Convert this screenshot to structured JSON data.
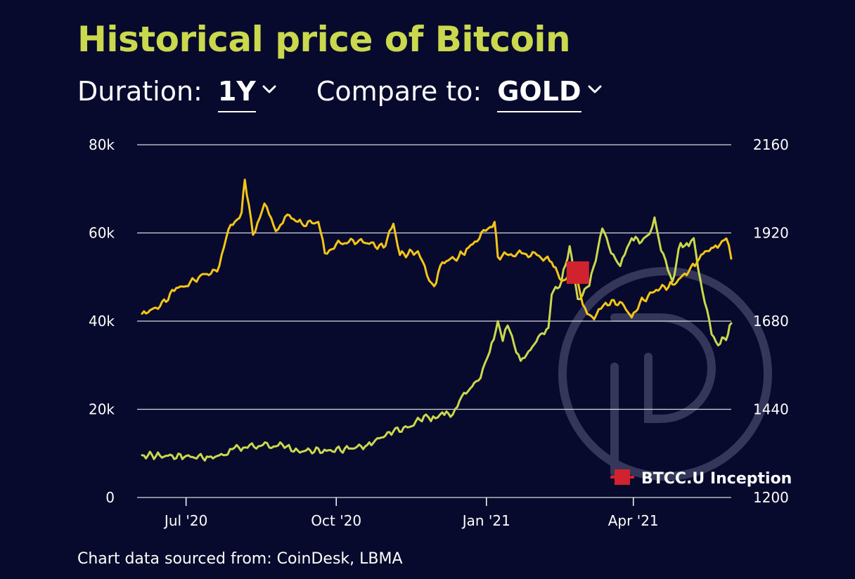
{
  "header": {
    "title": "Historical price of Bitcoin"
  },
  "controls": {
    "duration_label": "Duration:",
    "duration_value": "1Y",
    "compare_label": "Compare to:",
    "compare_value": "GOLD"
  },
  "footer": {
    "source": "Chart data sourced from: CoinDesk, LBMA"
  },
  "colors": {
    "background": "#070a2c",
    "title": "#c9d84c",
    "bitcoin": "#c9d84c",
    "gold": "#f5c518",
    "marker": "#d0232e",
    "gridline": "#d7d7e0",
    "watermark": "#5a5d80"
  },
  "chart_data": {
    "type": "line",
    "x_axis": {
      "type": "date",
      "range": [
        "2020-06-01",
        "2021-05-31"
      ],
      "ticks": [
        {
          "date": "2020-07-01",
          "label": "Jul '20"
        },
        {
          "date": "2020-10-01",
          "label": "Oct '20"
        },
        {
          "date": "2021-01-01",
          "label": "Jan '21"
        },
        {
          "date": "2021-04-01",
          "label": "Apr '21"
        }
      ]
    },
    "y_left": {
      "range": [
        0,
        80000
      ],
      "ticks": [
        {
          "value": 0,
          "label": "0"
        },
        {
          "value": 20000,
          "label": "20k"
        },
        {
          "value": 40000,
          "label": "40k"
        },
        {
          "value": 60000,
          "label": "60k"
        },
        {
          "value": 80000,
          "label": "80k"
        }
      ]
    },
    "y_right": {
      "range": [
        1200,
        2160
      ],
      "ticks": [
        {
          "value": 1200,
          "label": "1200"
        },
        {
          "value": 1440,
          "label": "1440"
        },
        {
          "value": 1680,
          "label": "1680"
        },
        {
          "value": 1920,
          "label": "1920"
        },
        {
          "value": 2160,
          "label": "2160"
        }
      ]
    },
    "grid": "horizontal",
    "series": [
      {
        "axis": "left",
        "color": "#c9d84c",
        "points": [
          [
            "2020-06-04",
            9600
          ],
          [
            "2020-06-15",
            9500
          ],
          [
            "2020-06-30",
            9200
          ],
          [
            "2020-07-15",
            9200
          ],
          [
            "2020-07-25",
            9600
          ],
          [
            "2020-07-28",
            11000
          ],
          [
            "2020-08-05",
            11300
          ],
          [
            "2020-08-17",
            11900
          ],
          [
            "2020-08-25",
            11600
          ],
          [
            "2020-09-02",
            11900
          ],
          [
            "2020-09-05",
            10400
          ],
          [
            "2020-09-15",
            10700
          ],
          [
            "2020-09-25",
            10600
          ],
          [
            "2020-10-10",
            11100
          ],
          [
            "2020-10-20",
            11900
          ],
          [
            "2020-10-25",
            13000
          ],
          [
            "2020-11-05",
            15000
          ],
          [
            "2020-11-15",
            16000
          ],
          [
            "2020-11-25",
            18800
          ],
          [
            "2020-11-28",
            17300
          ],
          [
            "2020-12-05",
            19300
          ],
          [
            "2020-12-10",
            18300
          ],
          [
            "2020-12-17",
            23000
          ],
          [
            "2020-12-27",
            26500
          ],
          [
            "2021-01-03",
            33000
          ],
          [
            "2021-01-08",
            40000
          ],
          [
            "2021-01-11",
            35500
          ],
          [
            "2021-01-14",
            39000
          ],
          [
            "2021-01-22",
            31000
          ],
          [
            "2021-01-28",
            33500
          ],
          [
            "2021-02-03",
            37000
          ],
          [
            "2021-02-08",
            38500
          ],
          [
            "2021-02-10",
            46000
          ],
          [
            "2021-02-16",
            49000
          ],
          [
            "2021-02-21",
            57000
          ],
          [
            "2021-02-26",
            45000
          ],
          [
            "2021-03-05",
            48000
          ],
          [
            "2021-03-13",
            61000
          ],
          [
            "2021-03-17",
            57000
          ],
          [
            "2021-03-24",
            52500
          ],
          [
            "2021-03-31",
            58800
          ],
          [
            "2021-04-06",
            58000
          ],
          [
            "2021-04-11",
            59800
          ],
          [
            "2021-04-14",
            63500
          ],
          [
            "2021-04-18",
            56000
          ],
          [
            "2021-04-25",
            49000
          ],
          [
            "2021-04-30",
            57700
          ],
          [
            "2021-05-05",
            57000
          ],
          [
            "2021-05-08",
            58800
          ],
          [
            "2021-05-12",
            49500
          ],
          [
            "2021-05-19",
            37000
          ],
          [
            "2021-05-23",
            34500
          ],
          [
            "2021-05-29",
            37000
          ],
          [
            "2021-05-31",
            39500
          ]
        ]
      },
      {
        "axis": "right",
        "color": "#f5c518",
        "points": [
          [
            "2020-06-04",
            1700
          ],
          [
            "2020-06-15",
            1720
          ],
          [
            "2020-06-25",
            1770
          ],
          [
            "2020-07-01",
            1775
          ],
          [
            "2020-07-10",
            1805
          ],
          [
            "2020-07-20",
            1815
          ],
          [
            "2020-07-27",
            1930
          ],
          [
            "2020-08-04",
            1975
          ],
          [
            "2020-08-06",
            2065
          ],
          [
            "2020-08-11",
            1915
          ],
          [
            "2020-08-18",
            2000
          ],
          [
            "2020-08-25",
            1925
          ],
          [
            "2020-09-01",
            1970
          ],
          [
            "2020-09-10",
            1945
          ],
          [
            "2020-09-20",
            1950
          ],
          [
            "2020-09-24",
            1865
          ],
          [
            "2020-10-01",
            1890
          ],
          [
            "2020-10-15",
            1900
          ],
          [
            "2020-10-30",
            1880
          ],
          [
            "2020-11-05",
            1945
          ],
          [
            "2020-11-09",
            1860
          ],
          [
            "2020-11-20",
            1870
          ],
          [
            "2020-11-27",
            1790
          ],
          [
            "2020-11-30",
            1775
          ],
          [
            "2020-12-05",
            1840
          ],
          [
            "2020-12-15",
            1855
          ],
          [
            "2020-12-21",
            1880
          ],
          [
            "2021-01-06",
            1950
          ],
          [
            "2021-01-08",
            1855
          ],
          [
            "2021-01-20",
            1865
          ],
          [
            "2021-02-01",
            1860
          ],
          [
            "2021-02-10",
            1840
          ],
          [
            "2021-02-16",
            1790
          ],
          [
            "2021-02-25",
            1800
          ],
          [
            "2021-03-01",
            1725
          ],
          [
            "2021-03-08",
            1685
          ],
          [
            "2021-03-15",
            1730
          ],
          [
            "2021-03-25",
            1730
          ],
          [
            "2021-03-31",
            1690
          ],
          [
            "2021-04-05",
            1730
          ],
          [
            "2021-04-15",
            1765
          ],
          [
            "2021-04-25",
            1780
          ],
          [
            "2021-05-05",
            1815
          ],
          [
            "2021-05-10",
            1840
          ],
          [
            "2021-05-15",
            1870
          ],
          [
            "2021-05-20",
            1880
          ],
          [
            "2021-05-28",
            1905
          ],
          [
            "2021-05-31",
            1850
          ]
        ]
      }
    ],
    "markers": [
      {
        "date": "2021-02-26",
        "value": 51000,
        "axis": "left",
        "color": "#d0232e",
        "label": "BTCC.U Inception"
      }
    ],
    "legend": {
      "position": "bottom-right",
      "label": "BTCC.U Inception"
    }
  }
}
